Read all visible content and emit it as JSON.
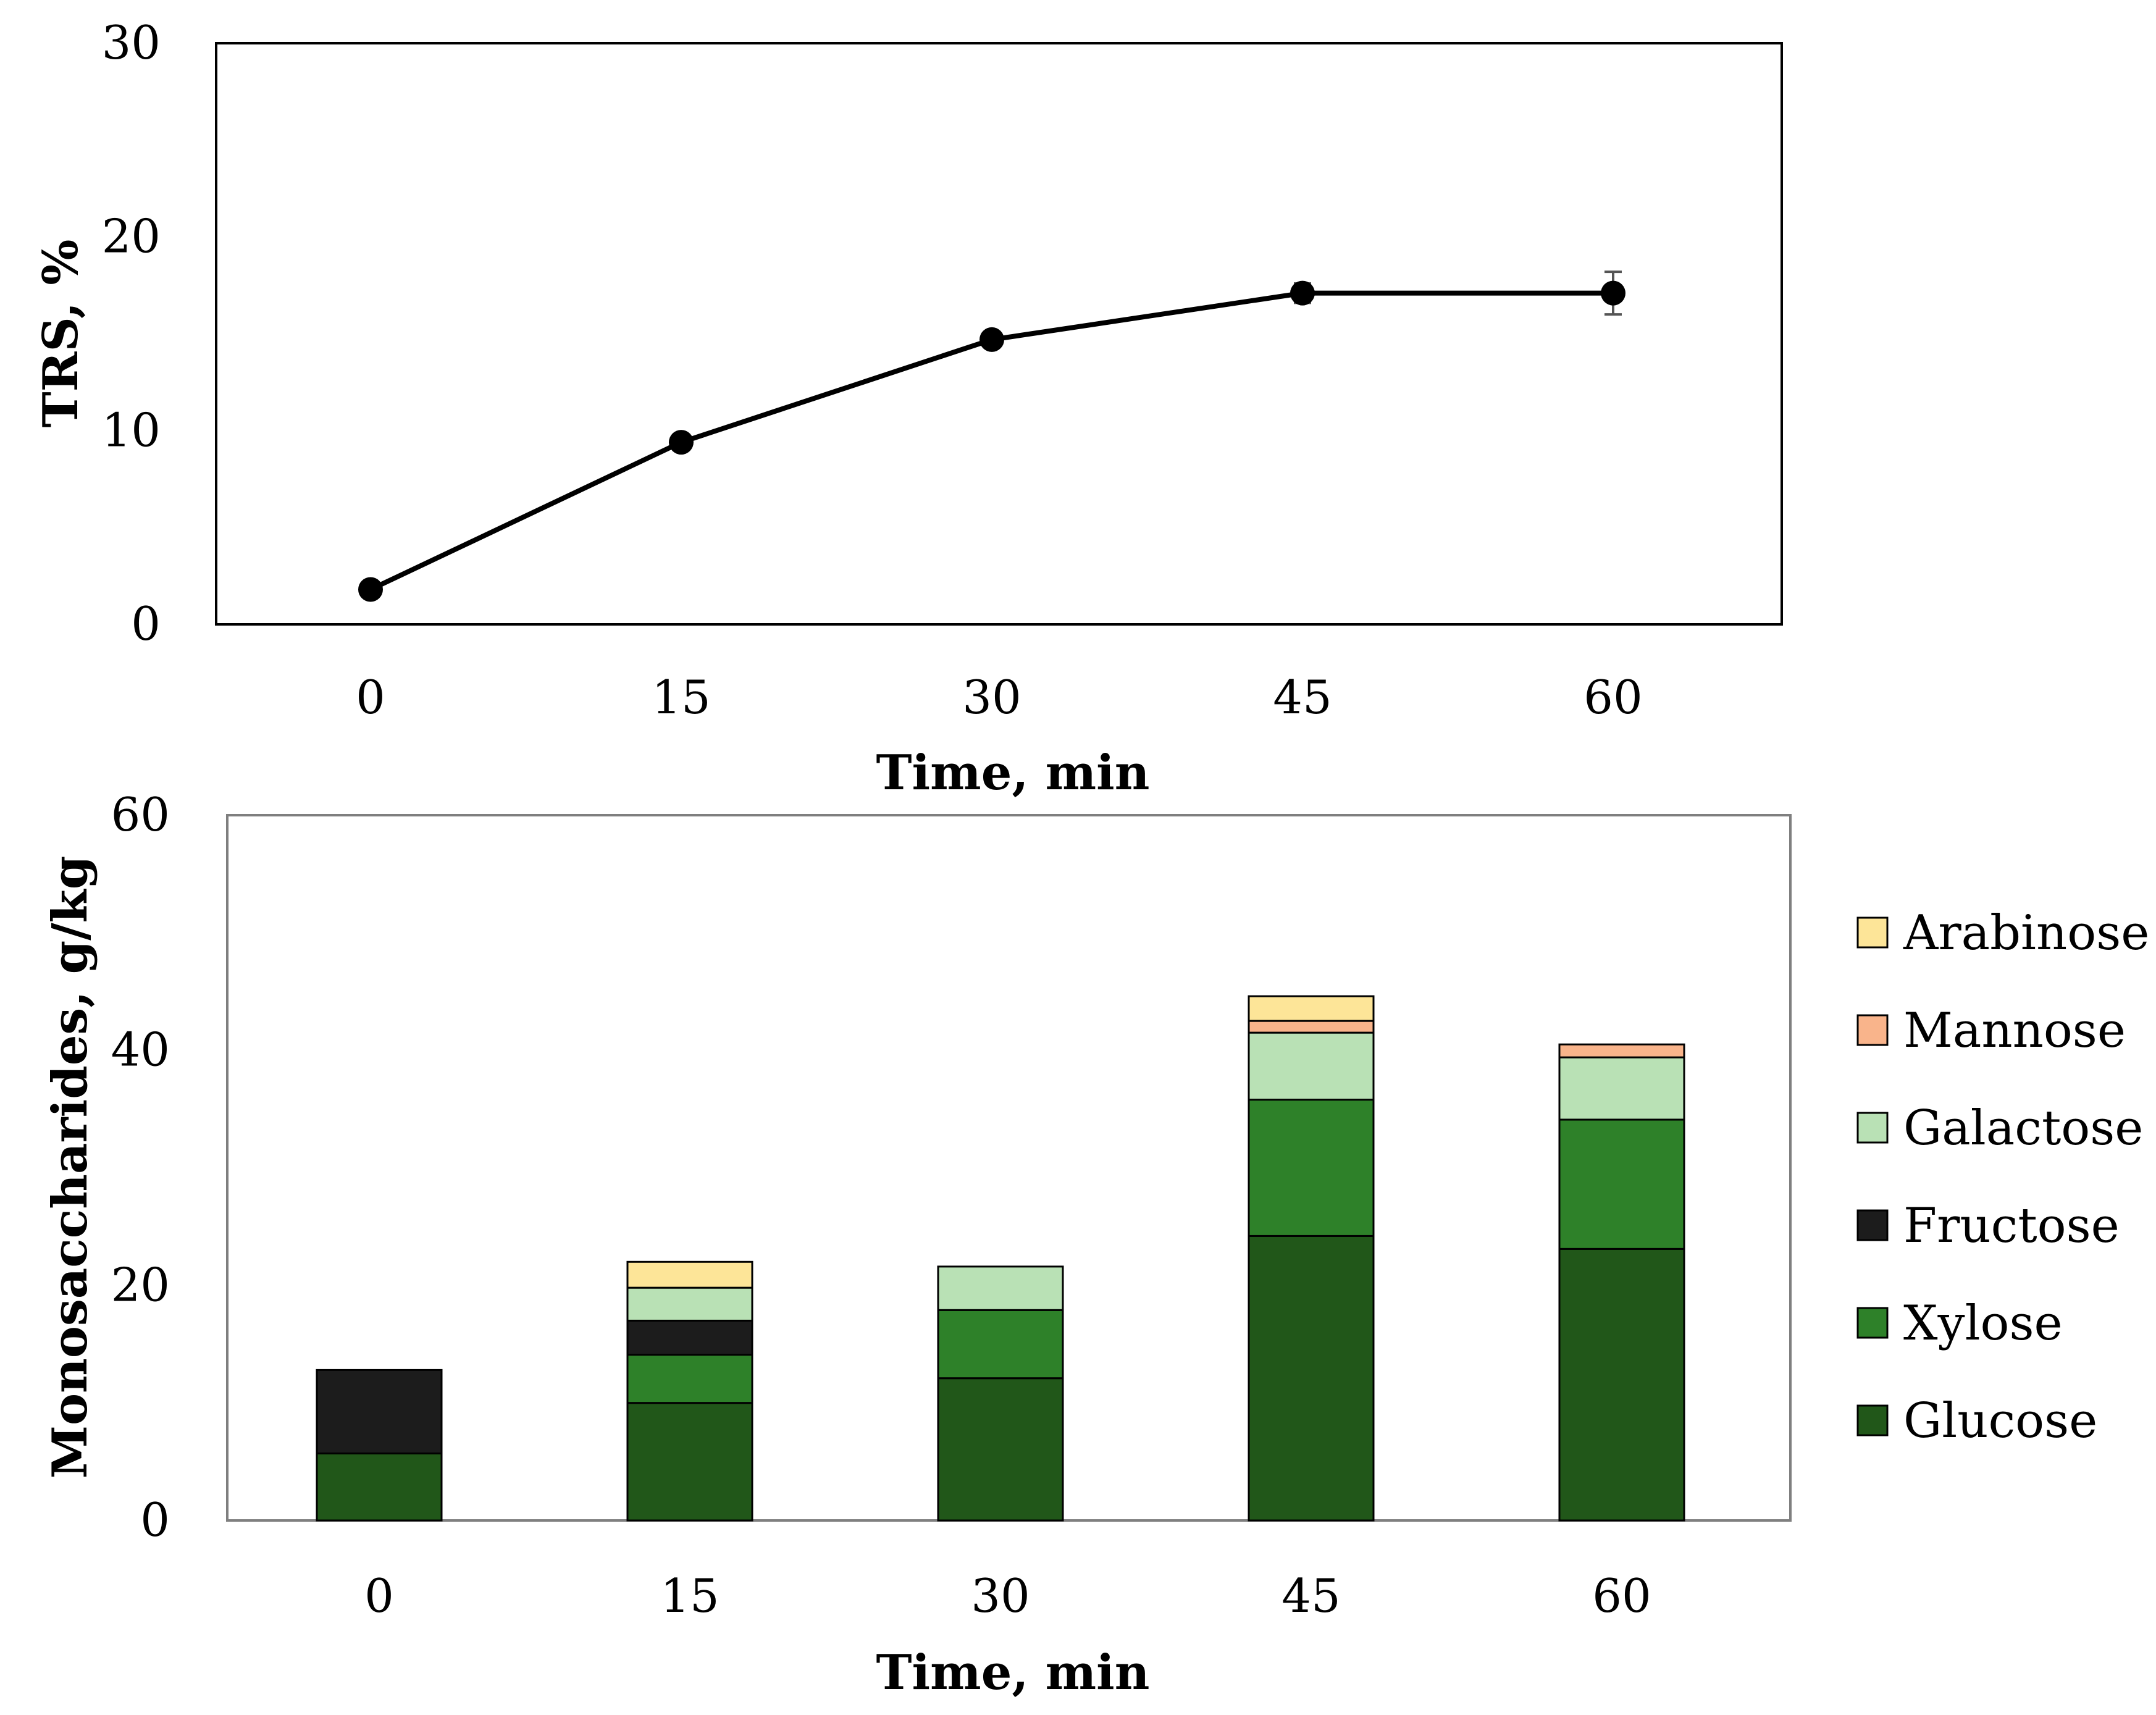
{
  "chart_data": [
    {
      "type": "line",
      "title": "",
      "xlabel": "Time, min",
      "ylabel": "TRS, %",
      "categories": [
        "0",
        "15",
        "30",
        "45",
        "60"
      ],
      "x": [
        0,
        15,
        30,
        45,
        60
      ],
      "y": [
        1.8,
        9.4,
        14.7,
        17.1,
        17.1
      ],
      "error": [
        0,
        0,
        0,
        0.5,
        1.1
      ],
      "ylim": [
        0,
        30
      ],
      "yticks": [
        "0",
        "10",
        "20",
        "30"
      ],
      "series_color": "#000000",
      "grid": false,
      "legend": "none"
    },
    {
      "type": "bar",
      "stacked": true,
      "title": "",
      "xlabel": "Time, min",
      "ylabel": "Monosaccharides, g/kg",
      "categories": [
        "0",
        "15",
        "30",
        "45",
        "60"
      ],
      "ylim": [
        0,
        60
      ],
      "yticks": [
        "0",
        "20",
        "40",
        "60"
      ],
      "grid": false,
      "legend": "right",
      "series": [
        {
          "name": "Glucose",
          "color": "#215719",
          "values": [
            5.7,
            10.0,
            12.1,
            24.2,
            23.1
          ]
        },
        {
          "name": "Xylose",
          "color": "#2e8129",
          "values": [
            0.0,
            4.1,
            5.8,
            11.6,
            11.0
          ]
        },
        {
          "name": "Fructose",
          "color": "#1c1c1c",
          "values": [
            7.1,
            2.9,
            0.0,
            0.0,
            0.0
          ]
        },
        {
          "name": "Galactose",
          "color": "#b9e1b5",
          "values": [
            0.0,
            2.8,
            3.7,
            5.7,
            5.3
          ]
        },
        {
          "name": "Mannose",
          "color": "#f9b48b",
          "values": [
            0.0,
            0.0,
            0.0,
            1.0,
            1.1
          ]
        },
        {
          "name": "Arabinose",
          "color": "#fde598",
          "values": [
            0.0,
            2.2,
            0.0,
            2.1,
            0.0
          ]
        }
      ]
    }
  ]
}
